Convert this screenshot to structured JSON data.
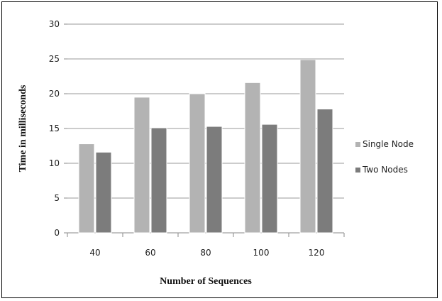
{
  "chart_data": {
    "type": "bar",
    "title": "",
    "xlabel": "Number of Sequences",
    "ylabel": "Time in milliseconds",
    "categories": [
      "40",
      "60",
      "80",
      "100",
      "120"
    ],
    "series": [
      {
        "name": "Single Node",
        "values": [
          12.8,
          19.5,
          20.0,
          21.6,
          24.9
        ],
        "color": "#b3b3b3"
      },
      {
        "name": "Two Nodes",
        "values": [
          11.6,
          15.1,
          15.3,
          15.6,
          17.8
        ],
        "color": "#7c7c7c"
      }
    ],
    "yticks": [
      0,
      5,
      10,
      15,
      20,
      25,
      30
    ],
    "ylim": [
      0,
      30
    ],
    "grid": true,
    "legend_position": "right"
  }
}
